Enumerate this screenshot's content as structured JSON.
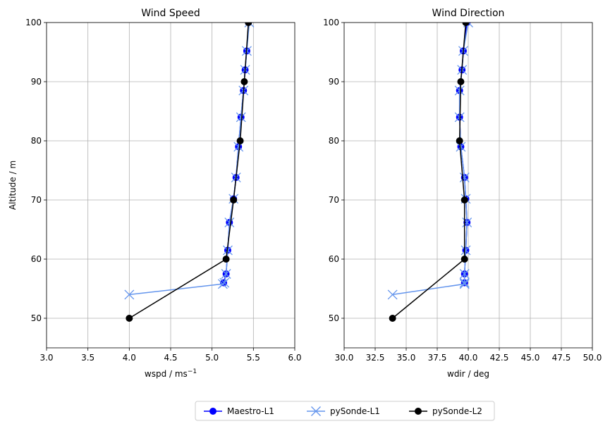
{
  "chart_data": [
    {
      "type": "line",
      "title": "Wind Speed",
      "xlabel": "wspd / ms",
      "xlabel_sup": "−1",
      "ylabel": "Altitude / m",
      "xlim": [
        3.0,
        6.0
      ],
      "ylim": [
        45,
        100
      ],
      "xticks": [
        "3.0",
        "3.5",
        "4.0",
        "4.5",
        "5.0",
        "5.5",
        "6.0"
      ],
      "yticks": [
        "50",
        "60",
        "70",
        "80",
        "90",
        "100"
      ],
      "grid": true,
      "series": [
        {
          "name": "Maestro-L1",
          "color": "#0000ff",
          "marker": "circle",
          "x": [
            5.14,
            5.17,
            5.19,
            5.21,
            5.26,
            5.29,
            5.32,
            5.35,
            5.38,
            5.4,
            5.42,
            5.44
          ],
          "y": [
            56,
            57.5,
            61.5,
            66.2,
            70.2,
            73.8,
            79.0,
            84.0,
            88.5,
            92.0,
            95.2,
            100
          ]
        },
        {
          "name": "pySonde-L1",
          "color": "#6495ed",
          "marker": "x",
          "x": [
            4.0,
            5.13,
            5.15,
            5.17,
            5.19,
            5.21,
            5.26,
            5.29,
            5.32,
            5.35,
            5.38,
            5.4,
            5.42,
            5.45
          ],
          "y": [
            54,
            55.8,
            56.0,
            57.5,
            61.5,
            66.2,
            70.2,
            73.8,
            79.0,
            84.0,
            88.5,
            92.0,
            95.2,
            100
          ]
        },
        {
          "name": "pySonde-L2",
          "color": "#000000",
          "marker": "circle",
          "x": [
            4.0,
            5.17,
            5.26,
            5.34,
            5.39,
            5.44
          ],
          "y": [
            50,
            60,
            70,
            80,
            90,
            100
          ]
        }
      ]
    },
    {
      "type": "line",
      "title": "Wind Direction",
      "xlabel": "wdir / deg",
      "xlim": [
        30.0,
        50.0
      ],
      "ylim": [
        45,
        100
      ],
      "xticks": [
        "30.0",
        "32.5",
        "35.0",
        "37.5",
        "40.0",
        "42.5",
        "45.0",
        "47.5",
        "50.0"
      ],
      "yticks": [
        "50",
        "60",
        "70",
        "80",
        "90",
        "100"
      ],
      "grid": true,
      "series": [
        {
          "name": "Maestro-L1",
          "color": "#0000ff",
          "marker": "circle",
          "x": [
            39.7,
            39.7,
            39.8,
            39.9,
            39.8,
            39.7,
            39.4,
            39.3,
            39.3,
            39.5,
            39.6,
            39.9
          ],
          "y": [
            56,
            57.5,
            61.5,
            66.2,
            70.2,
            73.8,
            79.0,
            84.0,
            88.5,
            92.0,
            95.2,
            100
          ]
        },
        {
          "name": "pySonde-L1",
          "color": "#6495ed",
          "marker": "x",
          "x": [
            33.9,
            39.7,
            39.7,
            39.7,
            39.8,
            39.9,
            39.8,
            39.7,
            39.4,
            39.3,
            39.3,
            39.5,
            39.6,
            40.0
          ],
          "y": [
            54,
            55.8,
            56.0,
            57.5,
            61.5,
            66.2,
            70.2,
            73.8,
            79.0,
            84.0,
            88.5,
            92.0,
            95.2,
            100
          ]
        },
        {
          "name": "pySonde-L2",
          "color": "#000000",
          "marker": "circle",
          "x": [
            33.9,
            39.7,
            39.7,
            39.3,
            39.4,
            39.8
          ],
          "y": [
            50,
            60,
            70,
            80,
            90,
            100
          ]
        }
      ]
    }
  ],
  "legend": {
    "placement": "bottom-center",
    "entries": [
      {
        "label": "Maestro-L1",
        "color": "#0000ff",
        "marker": "circle"
      },
      {
        "label": "pySonde-L1",
        "color": "#6495ed",
        "marker": "x"
      },
      {
        "label": "pySonde-L2",
        "color": "#000000",
        "marker": "circle"
      }
    ]
  }
}
